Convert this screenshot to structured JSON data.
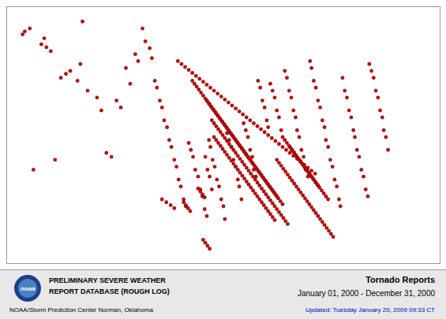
{
  "chart_data": {
    "type": "scatter",
    "color": "#cc0000",
    "xlim": [
      -125,
      -65
    ],
    "ylim": [
      24,
      50
    ],
    "tick_labels": false,
    "grid": false,
    "annotations": [
      "noaa",
      "PRELIMINARY SEVERE WEATHER",
      "REPORT DATABASE (ROUGH LOG)",
      "NOAA/Storm Prediction Center   Norman, Oklahoma",
      "Tornado Reports",
      "January 01, 2000 - December 31, 2000",
      "Updated:  Tuesday January 20, 2009 09:33 CT"
    ],
    "x": [
      -122.5,
      -121.8,
      -120.2,
      -119.5,
      -118.3,
      -116.8,
      -115.2,
      -114.5,
      -122.8,
      -121.3,
      -119.8,
      -118.9,
      -117.5,
      -116.2,
      -114.8,
      -113.8,
      -112.5,
      -111.9,
      -111.2,
      -110.5,
      -109.8,
      -109.2,
      -108.5,
      -107.9,
      -107.2,
      -106.8,
      -106.2,
      -105.8,
      -105.2,
      -104.9,
      -104.5,
      -104.2,
      -103.8,
      -103.5,
      -103.2,
      -102.8,
      -102.5,
      -102.2,
      -101.8,
      -101.5,
      -101.2,
      -100.9,
      -100.5,
      -100.2,
      -99.8,
      -99.5,
      -99.2,
      -98.9,
      -98.5,
      -98.2,
      -97.9,
      -97.6,
      -97.3,
      -97.0,
      -96.8,
      -96.5,
      -96.2,
      -95.9,
      -95.6,
      -95.3,
      -95.0,
      -94.8,
      -94.5,
      -94.2,
      -93.9,
      -93.6,
      -93.3,
      -93.0,
      -92.8,
      -92.5,
      -92.2,
      -91.9,
      -91.6,
      -91.3,
      -91.0,
      -90.8,
      -90.5,
      -90.2,
      -89.9,
      -89.6,
      -89.3,
      -89.0,
      -88.8,
      -88.5,
      -88.2,
      -87.9,
      -87.6,
      -87.3,
      -87.0,
      -86.8,
      -86.5,
      -86.2,
      -85.9,
      -85.6,
      -85.3,
      -85.0,
      -84.8,
      -84.5,
      -84.2,
      -83.9,
      -83.6,
      -83.3,
      -83.0,
      -82.8,
      -82.5,
      -82.2,
      -81.9,
      -81.6,
      -81.3,
      -81.0,
      -80.8,
      -80.5,
      -80.2,
      -79.9,
      -79.6,
      -79.3,
      -79.0,
      -78.8,
      -78.5,
      -78.2,
      -77.9,
      -77.6,
      -77.3,
      -77.0,
      -76.8,
      -76.5,
      -76.2,
      -75.9,
      -75.6,
      -75.3,
      -75.0,
      -74.8,
      -74.5,
      -74.2,
      -73.9,
      -73.6,
      -73.3,
      -73.0,
      -72.8,
      -72.5,
      -72.2,
      -97.5,
      -97.2,
      -96.9,
      -96.6,
      -96.3,
      -96.0,
      -95.7,
      -95.4,
      -95.1,
      -94.8,
      -94.5,
      -94.2,
      -93.9,
      -93.6,
      -93.3,
      -93.0,
      -92.7,
      -92.4,
      -92.1,
      -91.8,
      -91.5,
      -91.2,
      -90.9,
      -90.6,
      -90.3,
      -90.0,
      -89.7,
      -89.4,
      -89.1,
      -88.8,
      -88.5,
      -88.2,
      -87.9,
      -87.6,
      -87.3,
      -87.0,
      -86.7,
      -86.4,
      -86.1,
      -85.8,
      -85.5,
      -85.2,
      -84.9,
      -84.6,
      -84.3,
      -84.0,
      -83.7,
      -83.4,
      -83.1,
      -82.8,
      -82.5,
      -82.2,
      -81.9,
      -81.6,
      -81.3,
      -81.0,
      -80.7,
      -80.4,
      -80.1,
      -79.8,
      -97.8,
      -97.5,
      -97.2,
      -96.9,
      -96.6,
      -96.3,
      -96.0,
      -95.7,
      -95.4,
      -95.1,
      -94.8,
      -94.5,
      -94.2,
      -93.9,
      -93.6,
      -93.3,
      -93.0,
      -92.7,
      -92.4,
      -92.1,
      -91.8,
      -91.5,
      -91.2,
      -90.9,
      -90.6,
      -90.3,
      -90.0,
      -89.7,
      -89.4,
      -89.1,
      -88.8,
      -88.5,
      -88.2,
      -87.9,
      -87.6,
      -87.3,
      -87.0,
      -86.7,
      -86.4,
      -86.1,
      -85.8,
      -85.5,
      -85.2,
      -84.9,
      -84.6,
      -84.3,
      -84.0,
      -83.7,
      -83.4,
      -83.1,
      -82.8,
      -82.5,
      -82.2,
      -81.9,
      -98.5,
      -98.2,
      -97.9,
      -97.6,
      -97.3,
      -97.0,
      -96.7,
      -96.4,
      -96.1,
      -95.8,
      -95.5,
      -95.2,
      -94.9,
      -94.6,
      -94.3,
      -94.0,
      -93.7,
      -93.4,
      -93.1,
      -92.8,
      -92.5,
      -92.2,
      -91.9,
      -91.6,
      -91.3,
      -91.0,
      -90.7,
      -90.4,
      -90.1,
      -89.8,
      -89.5,
      -89.2,
      -88.9,
      -88.6,
      -88.3,
      -88.0,
      -87.7,
      -87.4,
      -87.1,
      -86.8,
      -86.5,
      -86.2,
      -85.9,
      -85.6,
      -85.3,
      -85.0,
      -84.7,
      -84.4,
      -84.1,
      -83.8,
      -83.5,
      -83.2,
      -82.9,
      -82.6,
      -82.3,
      -82.0,
      -81.7,
      -81.4,
      -81.1,
      -80.8,
      -80.5,
      -100.5,
      -100.2,
      -99.9,
      -99.6,
      -99.3,
      -99.0,
      -98.7,
      -98.4,
      -98.1,
      -97.8,
      -97.5,
      -97.2,
      -96.9,
      -96.6,
      -96.3,
      -96.0,
      -95.7,
      -95.4,
      -95.1,
      -94.8,
      -94.5,
      -94.2,
      -93.9,
      -93.6,
      -93.3,
      -93.0,
      -92.7,
      -92.4,
      -92.1,
      -91.8,
      -91.5,
      -91.2,
      -90.9,
      -90.6,
      -90.3,
      -90.0,
      -89.7,
      -89.4,
      -89.1,
      -88.8,
      -88.5,
      -88.2,
      -87.9,
      -87.6,
      -103.5,
      -102.9,
      -102.3,
      -101.8,
      -101.3,
      -100.8,
      -100.3,
      -99.8,
      -99.3,
      -98.8,
      -98.3,
      -97.8,
      -97.3,
      -96.8,
      -96.3,
      -95.8,
      -95.3,
      -94.8,
      -94.3,
      -93.8,
      -93.3,
      -92.8,
      -92.3,
      -91.8,
      -91.3,
      -90.8,
      -90.3,
      -89.8,
      -89.3,
      -88.8,
      -88.3,
      -87.8,
      -87.3,
      -86.8,
      -86.3,
      -85.8,
      -85.3,
      -84.8,
      -84.3,
      -83.8,
      -83.3,
      -82.8,
      -82.3
    ],
    "values": [
      47.5,
      47.8,
      46.2,
      45.9,
      34.5,
      43.2,
      42.5,
      48.5,
      47.2,
      33.5,
      46.8,
      45.5,
      42.8,
      43.5,
      44.2,
      41.5,
      40.8,
      39.5,
      35.2,
      34.8,
      40.5,
      39.8,
      43.8,
      42.2,
      45.2,
      44.5,
      47.8,
      46.5,
      45.8,
      44.8,
      42.5,
      41.8,
      40.5,
      39.8,
      38.5,
      37.8,
      36.5,
      35.8,
      34.5,
      33.8,
      32.5,
      31.8,
      30.5,
      29.8,
      36.2,
      35.5,
      34.8,
      33.5,
      32.8,
      31.5,
      30.8,
      29.5,
      28.8,
      36.5,
      35.8,
      34.5,
      33.8,
      32.5,
      31.8,
      30.5,
      29.8,
      28.5,
      37.2,
      36.5,
      35.8,
      34.5,
      33.8,
      32.5,
      31.8,
      30.5,
      38.2,
      37.5,
      36.8,
      35.5,
      34.8,
      33.5,
      32.8,
      42.5,
      41.8,
      40.5,
      39.8,
      38.5,
      37.8,
      42.2,
      41.5,
      40.8,
      39.5,
      38.8,
      37.5,
      36.8,
      43.5,
      42.8,
      41.5,
      40.8,
      39.5,
      38.8,
      37.5,
      36.8,
      35.5,
      34.8,
      33.5,
      32.8,
      44.5,
      43.8,
      42.5,
      41.8,
      40.5,
      39.8,
      38.5,
      37.8,
      36.5,
      35.8,
      34.5,
      33.8,
      32.5,
      31.8,
      30.5,
      29.8,
      42.8,
      41.5,
      40.8,
      39.5,
      38.8,
      37.5,
      36.8,
      35.5,
      34.8,
      33.5,
      32.8,
      31.5,
      30.8,
      44.2,
      43.5,
      42.8,
      41.5,
      40.8,
      39.5,
      38.8,
      37.5,
      36.8,
      35.5,
      34.8,
      33.5,
      32.8,
      31.5,
      36.8,
      36.5,
      36.2,
      35.9,
      35.6,
      35.3,
      35.0,
      34.7,
      34.4,
      34.1,
      33.8,
      33.5,
      33.2,
      32.9,
      32.6,
      32.3,
      32.0,
      31.7,
      31.4,
      31.1,
      30.8,
      30.5,
      30.2,
      29.9,
      29.6,
      29.3,
      29.0,
      28.7,
      28.4,
      34.5,
      34.2,
      33.9,
      33.6,
      33.3,
      33.0,
      32.7,
      32.4,
      32.1,
      31.8,
      31.5,
      31.2,
      30.9,
      30.6,
      30.3,
      30.0,
      29.7,
      29.4,
      29.1,
      28.8,
      28.5,
      28.2,
      27.9,
      27.6,
      27.3,
      27.0,
      26.7,
      26.4,
      26.1,
      25.8,
      25.5,
      38.5,
      38.2,
      37.9,
      37.6,
      37.3,
      37.0,
      36.7,
      36.4,
      36.1,
      35.8,
      35.5,
      35.2,
      34.9,
      34.6,
      34.3,
      34.0,
      33.7,
      33.4,
      33.1,
      32.8,
      32.5,
      32.2,
      31.9,
      31.6,
      31.3,
      31.0,
      30.7,
      30.4,
      30.1,
      29.8,
      29.5,
      29.2,
      28.9,
      28.6,
      28.3,
      28.0,
      35.8,
      35.5,
      35.2,
      34.9,
      34.6,
      34.3,
      34.0,
      33.7,
      33.4,
      33.1,
      32.8,
      32.5,
      32.2,
      31.9,
      31.6,
      31.3,
      31.0,
      30.7,
      40.5,
      40.2,
      39.9,
      39.6,
      39.3,
      39.0,
      38.7,
      38.4,
      38.1,
      37.8,
      37.5,
      37.2,
      36.9,
      36.6,
      36.3,
      36.0,
      35.7,
      35.4,
      35.1,
      34.8,
      34.5,
      34.2,
      33.9,
      33.6,
      33.3,
      33.0,
      32.7,
      32.4,
      32.1,
      31.8,
      31.5,
      31.2,
      30.9,
      30.6,
      30.3,
      30.0,
      36.5,
      36.2,
      35.9,
      35.6,
      35.3,
      35.0,
      34.7,
      34.4,
      34.1,
      33.8,
      33.5,
      33.2,
      32.9,
      32.6,
      32.3,
      32.0,
      31.7,
      31.4,
      31.1,
      30.8,
      30.5,
      30.2,
      29.9,
      29.6,
      29.3,
      42.5,
      42.2,
      41.9,
      41.6,
      41.3,
      41.0,
      40.7,
      40.4,
      40.1,
      39.8,
      39.5,
      39.2,
      38.9,
      38.6,
      38.3,
      38.0,
      37.7,
      37.4,
      37.1,
      36.8,
      36.5,
      36.2,
      35.9,
      35.6,
      35.3,
      35.0,
      34.7,
      34.4,
      34.1,
      33.8,
      33.5,
      33.2,
      32.9,
      32.6,
      32.3,
      32.0,
      31.7,
      31.4,
      31.1,
      30.8,
      30.5,
      30.2,
      29.9,
      29.6,
      44.5,
      44.2,
      43.9,
      43.6,
      43.3,
      43.0,
      42.7,
      42.4,
      42.1,
      41.8,
      41.5,
      41.2,
      40.9,
      40.6,
      40.3,
      40.0,
      39.7,
      39.4,
      39.1,
      38.8,
      38.5,
      38.2,
      37.9,
      37.6,
      37.3,
      37.0,
      36.7,
      36.4,
      36.1,
      35.8,
      35.5,
      35.2,
      34.9,
      34.6,
      34.3,
      34.0,
      33.7,
      33.4,
      33.1
    ]
  }
}
